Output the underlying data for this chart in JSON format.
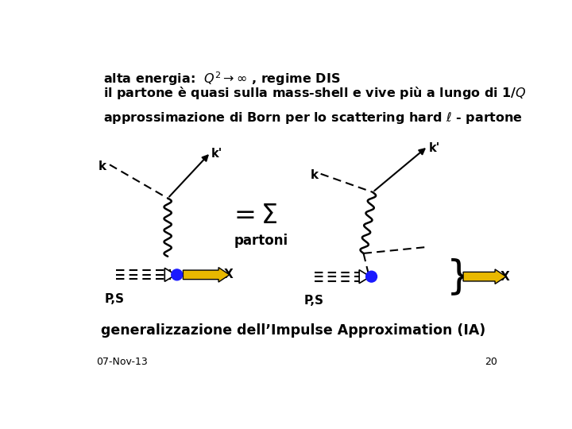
{
  "line1": "alta energia:  $Q^2 \\rightarrow \\infty$ , regime DIS",
  "line2": "il partone è quasi sulla mass-shell e vive più a lungo di 1/$Q$",
  "subtitle": "approssimazione di Born per lo scattering hard $\\ell$ - partone",
  "equals_sigma": "$= \\Sigma$",
  "partoni_text": "partoni",
  "bottom_text": "generalizzazione dell’Impulse Approximation (IA)",
  "date_text": "07-Nov-13",
  "page_text": "20",
  "bg_color": "#ffffff",
  "text_color": "#000000",
  "blob_color": "#1a1aff",
  "hadron_arrow_color": "#e8b800",
  "hadron_arrow_edge": "#000000"
}
